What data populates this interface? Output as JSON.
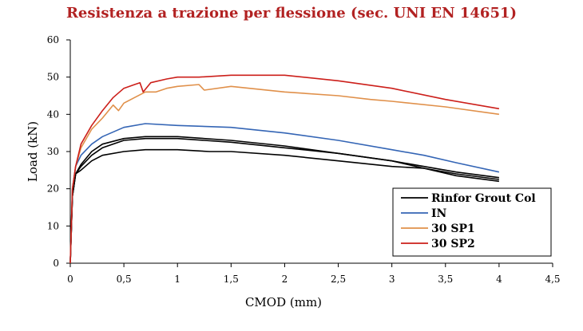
{
  "chart_data": {
    "type": "line",
    "title": "Resistenza a trazione per flessione (sec. UNI EN 14651)",
    "xlabel": "CMOD (mm)",
    "ylabel": "Load (kN)",
    "xlim": [
      0,
      4.5
    ],
    "ylim": [
      0,
      60
    ],
    "x_ticks": [
      "0",
      "0,5",
      "1",
      "1,5",
      "2",
      "2,5",
      "3",
      "3,5",
      "4",
      "4,5"
    ],
    "y_ticks": [
      "0",
      "10",
      "20",
      "30",
      "40",
      "50",
      "60"
    ],
    "grid": false,
    "legend_position": "bottom-right",
    "series": [
      {
        "name": "Rinfor Grout Col",
        "color": "#000000",
        "points": [
          [
            0,
            0
          ],
          [
            0.02,
            18
          ],
          [
            0.05,
            24
          ],
          [
            0.1,
            25
          ],
          [
            0.2,
            27.5
          ],
          [
            0.3,
            29
          ],
          [
            0.5,
            30
          ],
          [
            0.7,
            30.5
          ],
          [
            1,
            30.5
          ],
          [
            1.3,
            30
          ],
          [
            1.5,
            30
          ],
          [
            2,
            29
          ],
          [
            2.5,
            27.5
          ],
          [
            3,
            26
          ],
          [
            3.3,
            25.5
          ],
          [
            3.6,
            23.5
          ],
          [
            4,
            22
          ]
        ]
      },
      {
        "name": "Rinfor Grout Col",
        "color": "#000000",
        "points": [
          [
            0,
            0
          ],
          [
            0.02,
            18
          ],
          [
            0.05,
            24
          ],
          [
            0.1,
            26
          ],
          [
            0.2,
            29
          ],
          [
            0.3,
            31
          ],
          [
            0.5,
            33
          ],
          [
            0.7,
            33.5
          ],
          [
            1,
            33.5
          ],
          [
            1.5,
            32.5
          ],
          [
            2,
            31
          ],
          [
            2.5,
            29.5
          ],
          [
            3,
            27.5
          ],
          [
            3.3,
            26
          ],
          [
            3.6,
            24.5
          ],
          [
            4,
            23
          ]
        ]
      },
      {
        "name": "Rinfor Grout Col",
        "color": "#000000",
        "points": [
          [
            0,
            0
          ],
          [
            0.02,
            18
          ],
          [
            0.05,
            24
          ],
          [
            0.1,
            26.5
          ],
          [
            0.2,
            30
          ],
          [
            0.3,
            32
          ],
          [
            0.5,
            33.5
          ],
          [
            0.7,
            34
          ],
          [
            1,
            34
          ],
          [
            1.5,
            33
          ],
          [
            2,
            31.5
          ],
          [
            2.5,
            29.5
          ],
          [
            3,
            27.5
          ],
          [
            3.3,
            25.5
          ],
          [
            3.6,
            24
          ],
          [
            4,
            22.5
          ]
        ]
      },
      {
        "name": "IN",
        "color": "#3465b5",
        "points": [
          [
            0,
            0
          ],
          [
            0.02,
            20
          ],
          [
            0.05,
            26
          ],
          [
            0.1,
            29
          ],
          [
            0.2,
            32
          ],
          [
            0.3,
            34
          ],
          [
            0.5,
            36.5
          ],
          [
            0.7,
            37.5
          ],
          [
            1,
            37
          ],
          [
            1.5,
            36.5
          ],
          [
            2,
            35
          ],
          [
            2.5,
            33
          ],
          [
            3,
            30.5
          ],
          [
            3.3,
            29
          ],
          [
            3.6,
            27
          ],
          [
            4,
            24.5
          ]
        ]
      },
      {
        "name": "30 SP1",
        "color": "#e0904a",
        "points": [
          [
            0,
            0
          ],
          [
            0.02,
            20
          ],
          [
            0.05,
            26
          ],
          [
            0.1,
            31
          ],
          [
            0.2,
            36
          ],
          [
            0.3,
            39
          ],
          [
            0.4,
            42.5
          ],
          [
            0.45,
            41
          ],
          [
            0.5,
            43
          ],
          [
            0.6,
            44.5
          ],
          [
            0.7,
            46
          ],
          [
            0.8,
            46
          ],
          [
            0.9,
            47
          ],
          [
            1,
            47.5
          ],
          [
            1.2,
            48
          ],
          [
            1.25,
            46.5
          ],
          [
            1.5,
            47.5
          ],
          [
            2,
            46
          ],
          [
            2.5,
            45
          ],
          [
            2.8,
            44
          ],
          [
            3,
            43.5
          ],
          [
            3.5,
            42
          ],
          [
            4,
            40
          ]
        ]
      },
      {
        "name": "30 SP2",
        "color": "#cc1f1a",
        "points": [
          [
            0,
            0
          ],
          [
            0.02,
            20
          ],
          [
            0.05,
            26
          ],
          [
            0.1,
            32
          ],
          [
            0.2,
            37
          ],
          [
            0.3,
            41
          ],
          [
            0.4,
            44.5
          ],
          [
            0.5,
            47
          ],
          [
            0.6,
            48
          ],
          [
            0.65,
            48.5
          ],
          [
            0.68,
            46
          ],
          [
            0.75,
            48.5
          ],
          [
            0.9,
            49.5
          ],
          [
            1,
            50
          ],
          [
            1.2,
            50
          ],
          [
            1.5,
            50.5
          ],
          [
            2,
            50.5
          ],
          [
            2.5,
            49
          ],
          [
            3,
            47
          ],
          [
            3.5,
            44
          ],
          [
            4,
            41.5
          ]
        ]
      }
    ]
  }
}
